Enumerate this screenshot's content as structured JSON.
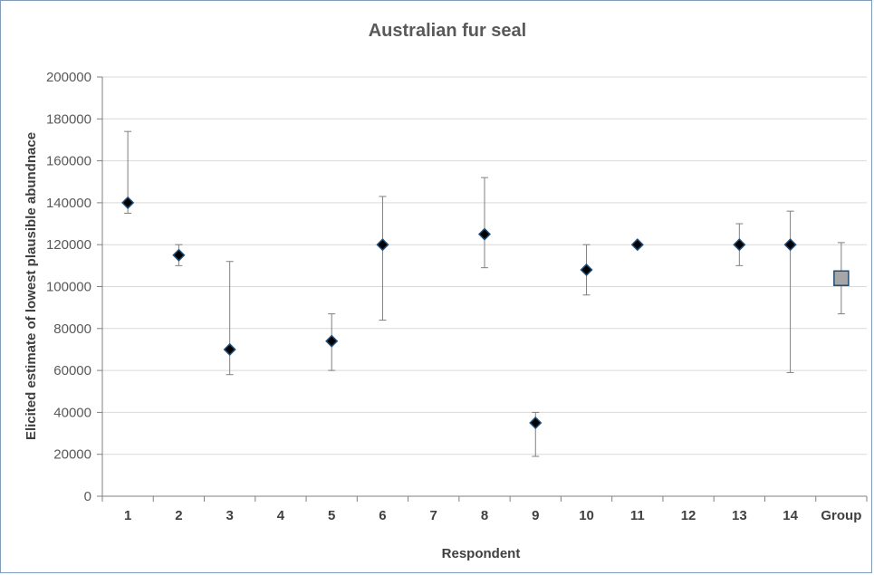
{
  "chart_data": {
    "type": "scatter",
    "title": "Australian fur seal",
    "xlabel": "Respondent",
    "ylabel": "Elicited estimate of lowest plausible abundnace",
    "ylim": [
      0,
      200000
    ],
    "yticks": [
      "0",
      "20000",
      "40000",
      "60000",
      "80000",
      "100000",
      "120000",
      "140000",
      "160000",
      "180000",
      "200000"
    ],
    "categories": [
      "1",
      "2",
      "3",
      "4",
      "5",
      "6",
      "7",
      "8",
      "9",
      "10",
      "11",
      "12",
      "13",
      "14",
      "Group"
    ],
    "grid": "horizontal",
    "legend": "none",
    "colors": {
      "marker": "#000000",
      "marker_edge": "#1f4e79",
      "group_marker": "#a6a6a6",
      "grid": "#d9d9d9",
      "axis": "#808080",
      "error_bar": "#808080",
      "text": "#595959"
    },
    "series": [
      {
        "points": [
          {
            "x": "1",
            "y": 140000,
            "low": 135000,
            "high": 174000,
            "marker": "diamond"
          },
          {
            "x": "2",
            "y": 115000,
            "low": 110000,
            "high": 120000,
            "marker": "diamond"
          },
          {
            "x": "3",
            "y": 70000,
            "low": 58000,
            "high": 112000,
            "marker": "diamond"
          },
          {
            "x": "5",
            "y": 74000,
            "low": 60000,
            "high": 87000,
            "marker": "diamond"
          },
          {
            "x": "6",
            "y": 120000,
            "low": 84000,
            "high": 143000,
            "marker": "diamond"
          },
          {
            "x": "8",
            "y": 125000,
            "low": 109000,
            "high": 152000,
            "marker": "diamond"
          },
          {
            "x": "9",
            "y": 35000,
            "low": 19000,
            "high": 40000,
            "marker": "diamond"
          },
          {
            "x": "10",
            "y": 108000,
            "low": 96000,
            "high": 120000,
            "marker": "diamond"
          },
          {
            "x": "11",
            "y": 120000,
            "low": 120000,
            "high": 120000,
            "marker": "diamond"
          },
          {
            "x": "13",
            "y": 120000,
            "low": 110000,
            "high": 130000,
            "marker": "diamond"
          },
          {
            "x": "14",
            "y": 120000,
            "low": 59000,
            "high": 136000,
            "marker": "diamond"
          },
          {
            "x": "Group",
            "y": 104000,
            "low": 87000,
            "high": 121000,
            "marker": "square"
          }
        ]
      }
    ]
  }
}
